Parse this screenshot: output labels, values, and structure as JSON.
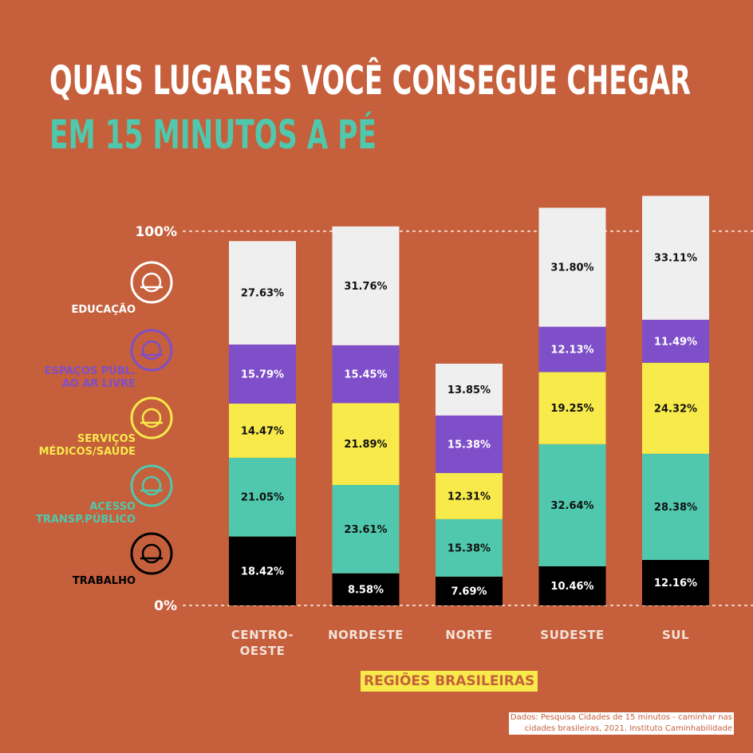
{
  "chart_data": {
    "type": "stacked_bar",
    "title": "QUAIS LUGARES VOCÊ CONSEGUE CHEGAR",
    "subtitle": "EM 15 MINUTOS A PÉ",
    "x_label": "REGIÕES BRASILEIRAS",
    "source": "Dados: Pesquisa Cidades de 15 minutos - caminhar nas\ncidades brasileiras, 2021. Instituto Caminhabilidade",
    "categories": [
      "CENTRO-\nOESTE",
      "NORDESTE",
      "NORTE",
      "SUDESTE",
      "SUL"
    ],
    "ylim": [
      0,
      110
    ],
    "yticks": [
      {
        "value": 0,
        "label": "0%"
      },
      {
        "value": 100,
        "label": "100%"
      }
    ],
    "grid": true,
    "series": [
      {
        "name": "TRABALHO",
        "color": "#000000",
        "label_color": "#ffffff",
        "legend_color": "#000000",
        "values": [
          18.42,
          8.58,
          7.69,
          10.46,
          12.16
        ],
        "value_labels": [
          "18.42%",
          "8.58%",
          "7.69%",
          "10.46%",
          "12.16%"
        ]
      },
      {
        "name": "ACESSO\nTRANSP.PÚBLICO",
        "color": "#4fc8ad",
        "label_color": "#111111",
        "legend_color": "#4fc8ad",
        "values": [
          21.05,
          23.61,
          15.38,
          32.64,
          28.38
        ],
        "value_labels": [
          "21.05%",
          "23.61%",
          "15.38%",
          "32.64%",
          "28.38%"
        ]
      },
      {
        "name": "SERVIÇOS\nMÉDICOS/SAÚDE",
        "color": "#f7ea4a",
        "label_color": "#111111",
        "legend_color": "#f7ea4a",
        "values": [
          14.47,
          21.89,
          12.31,
          19.25,
          24.32
        ],
        "value_labels": [
          "14.47%",
          "21.89%",
          "12.31%",
          "19.25%",
          "24.32%"
        ]
      },
      {
        "name": "ESPAÇOS PÚBL.\nAO AR LIVRE",
        "color": "#7e4fc9",
        "label_color": "#ffffff",
        "legend_color": "#7e4fc9",
        "values": [
          15.79,
          15.45,
          15.38,
          12.13,
          11.49
        ],
        "value_labels": [
          "15.79%",
          "15.45%",
          "15.38%",
          "12.13%",
          "11.49%"
        ]
      },
      {
        "name": "EDUCAÇÃO",
        "color": "#efefef",
        "label_color": "#111111",
        "legend_color": "#ffffff",
        "values": [
          27.63,
          31.76,
          13.85,
          31.8,
          33.11
        ],
        "value_labels": [
          "27.63%",
          "31.76%",
          "13.85%",
          "31.80%",
          "33.11%"
        ]
      }
    ]
  }
}
